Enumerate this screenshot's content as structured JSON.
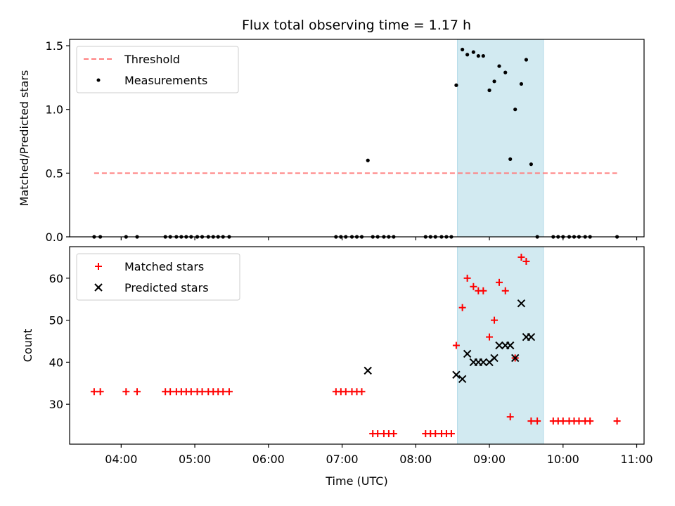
{
  "title": "Flux total observing time = 1.17 h",
  "chart_data": [
    {
      "type": "scatter",
      "ylabel": "Matched/Predicted stars",
      "xlim": [
        "03:18",
        "11:06"
      ],
      "ylim": [
        0,
        1.55
      ],
      "yticks": [
        "0.0",
        "0.5",
        "1.0",
        "1.5"
      ],
      "threshold": {
        "name": "Threshold",
        "value": 0.5,
        "x_start": "03:38",
        "x_end": "10:44",
        "color": "#ff7f7f",
        "style": "dashed"
      },
      "highlight": {
        "x_start": "08:34",
        "x_end": "09:44",
        "color": "#add8e6"
      },
      "legend": {
        "position": "upper left",
        "entries": [
          "Threshold",
          "Measurements"
        ]
      },
      "series": [
        {
          "name": "Measurements",
          "color": "#000000",
          "marker": "dot",
          "points": [
            [
              "03:38",
              0
            ],
            [
              "03:43",
              0
            ],
            [
              "04:04",
              0
            ],
            [
              "04:13",
              0
            ],
            [
              "04:36",
              0
            ],
            [
              "04:40",
              0
            ],
            [
              "04:45",
              0
            ],
            [
              "04:49",
              0
            ],
            [
              "04:53",
              0
            ],
            [
              "04:57",
              0
            ],
            [
              "05:02",
              0
            ],
            [
              "05:06",
              0
            ],
            [
              "05:11",
              0
            ],
            [
              "05:15",
              0
            ],
            [
              "05:19",
              0
            ],
            [
              "05:23",
              0
            ],
            [
              "05:28",
              0
            ],
            [
              "06:55",
              0
            ],
            [
              "06:59",
              0
            ],
            [
              "07:03",
              0
            ],
            [
              "07:08",
              0
            ],
            [
              "07:12",
              0
            ],
            [
              "07:16",
              0
            ],
            [
              "07:21",
              0.6
            ],
            [
              "07:25",
              0
            ],
            [
              "07:29",
              0
            ],
            [
              "07:34",
              0
            ],
            [
              "07:38",
              0
            ],
            [
              "07:42",
              0
            ],
            [
              "08:08",
              0
            ],
            [
              "08:12",
              0
            ],
            [
              "08:16",
              0
            ],
            [
              "08:21",
              0
            ],
            [
              "08:25",
              0
            ],
            [
              "08:29",
              0
            ],
            [
              "08:33",
              1.19
            ],
            [
              "08:38",
              1.47
            ],
            [
              "08:42",
              1.43
            ],
            [
              "08:47",
              1.45
            ],
            [
              "08:51",
              1.42
            ],
            [
              "08:55",
              1.42
            ],
            [
              "09:00",
              1.15
            ],
            [
              "09:04",
              1.22
            ],
            [
              "09:08",
              1.34
            ],
            [
              "09:13",
              1.29
            ],
            [
              "09:17",
              0.61
            ],
            [
              "09:21",
              1.0
            ],
            [
              "09:26",
              1.2
            ],
            [
              "09:30",
              1.39
            ],
            [
              "09:34",
              0.57
            ],
            [
              "09:39",
              0
            ],
            [
              "09:52",
              0
            ],
            [
              "09:56",
              0
            ],
            [
              "10:00",
              0
            ],
            [
              "10:05",
              0
            ],
            [
              "10:09",
              0
            ],
            [
              "10:13",
              0
            ],
            [
              "10:18",
              0
            ],
            [
              "10:22",
              0
            ],
            [
              "10:44",
              0
            ]
          ]
        }
      ]
    },
    {
      "type": "scatter",
      "xlabel": "Time (UTC)",
      "ylabel": "Count",
      "xlim": [
        "03:18",
        "11:06"
      ],
      "ylim": [
        20.5,
        67.5
      ],
      "yticks": [
        "30",
        "40",
        "50",
        "60"
      ],
      "xticks": [
        "04:00",
        "05:00",
        "06:00",
        "07:00",
        "08:00",
        "09:00",
        "10:00",
        "11:00"
      ],
      "highlight": {
        "x_start": "08:34",
        "x_end": "09:44",
        "color": "#add8e6"
      },
      "legend": {
        "position": "upper left",
        "entries": [
          "Matched stars",
          "Predicted stars"
        ]
      },
      "series": [
        {
          "name": "Matched stars",
          "color": "#ff0000",
          "marker": "plus",
          "points": [
            [
              "03:38",
              33
            ],
            [
              "03:43",
              33
            ],
            [
              "04:04",
              33
            ],
            [
              "04:13",
              33
            ],
            [
              "04:36",
              33
            ],
            [
              "04:40",
              33
            ],
            [
              "04:45",
              33
            ],
            [
              "04:49",
              33
            ],
            [
              "04:53",
              33
            ],
            [
              "04:57",
              33
            ],
            [
              "05:02",
              33
            ],
            [
              "05:06",
              33
            ],
            [
              "05:11",
              33
            ],
            [
              "05:15",
              33
            ],
            [
              "05:19",
              33
            ],
            [
              "05:23",
              33
            ],
            [
              "05:28",
              33
            ],
            [
              "06:55",
              33
            ],
            [
              "06:59",
              33
            ],
            [
              "07:03",
              33
            ],
            [
              "07:08",
              33
            ],
            [
              "07:12",
              33
            ],
            [
              "07:16",
              33
            ],
            [
              "07:25",
              23
            ],
            [
              "07:29",
              23
            ],
            [
              "07:34",
              23
            ],
            [
              "07:38",
              23
            ],
            [
              "07:42",
              23
            ],
            [
              "08:08",
              23
            ],
            [
              "08:12",
              23
            ],
            [
              "08:16",
              23
            ],
            [
              "08:21",
              23
            ],
            [
              "08:25",
              23
            ],
            [
              "08:29",
              23
            ],
            [
              "08:33",
              44
            ],
            [
              "08:38",
              53
            ],
            [
              "08:42",
              60
            ],
            [
              "08:47",
              58
            ],
            [
              "08:51",
              57
            ],
            [
              "08:55",
              57
            ],
            [
              "09:00",
              46
            ],
            [
              "09:04",
              50
            ],
            [
              "09:08",
              59
            ],
            [
              "09:13",
              57
            ],
            [
              "09:17",
              27
            ],
            [
              "09:21",
              41
            ],
            [
              "09:26",
              65
            ],
            [
              "09:30",
              64
            ],
            [
              "09:34",
              26
            ],
            [
              "09:39",
              26
            ],
            [
              "09:52",
              26
            ],
            [
              "09:56",
              26
            ],
            [
              "10:00",
              26
            ],
            [
              "10:05",
              26
            ],
            [
              "10:09",
              26
            ],
            [
              "10:13",
              26
            ],
            [
              "10:18",
              26
            ],
            [
              "10:22",
              26
            ],
            [
              "10:44",
              26
            ]
          ]
        },
        {
          "name": "Predicted stars",
          "color": "#000000",
          "marker": "x",
          "points": [
            [
              "07:21",
              38
            ],
            [
              "08:33",
              37
            ],
            [
              "08:38",
              36
            ],
            [
              "08:42",
              42
            ],
            [
              "08:47",
              40
            ],
            [
              "08:51",
              40
            ],
            [
              "08:55",
              40
            ],
            [
              "09:00",
              40
            ],
            [
              "09:04",
              41
            ],
            [
              "09:08",
              44
            ],
            [
              "09:13",
              44
            ],
            [
              "09:17",
              44
            ],
            [
              "09:21",
              41
            ],
            [
              "09:26",
              54
            ],
            [
              "09:30",
              46
            ],
            [
              "09:34",
              46
            ]
          ]
        }
      ]
    }
  ]
}
